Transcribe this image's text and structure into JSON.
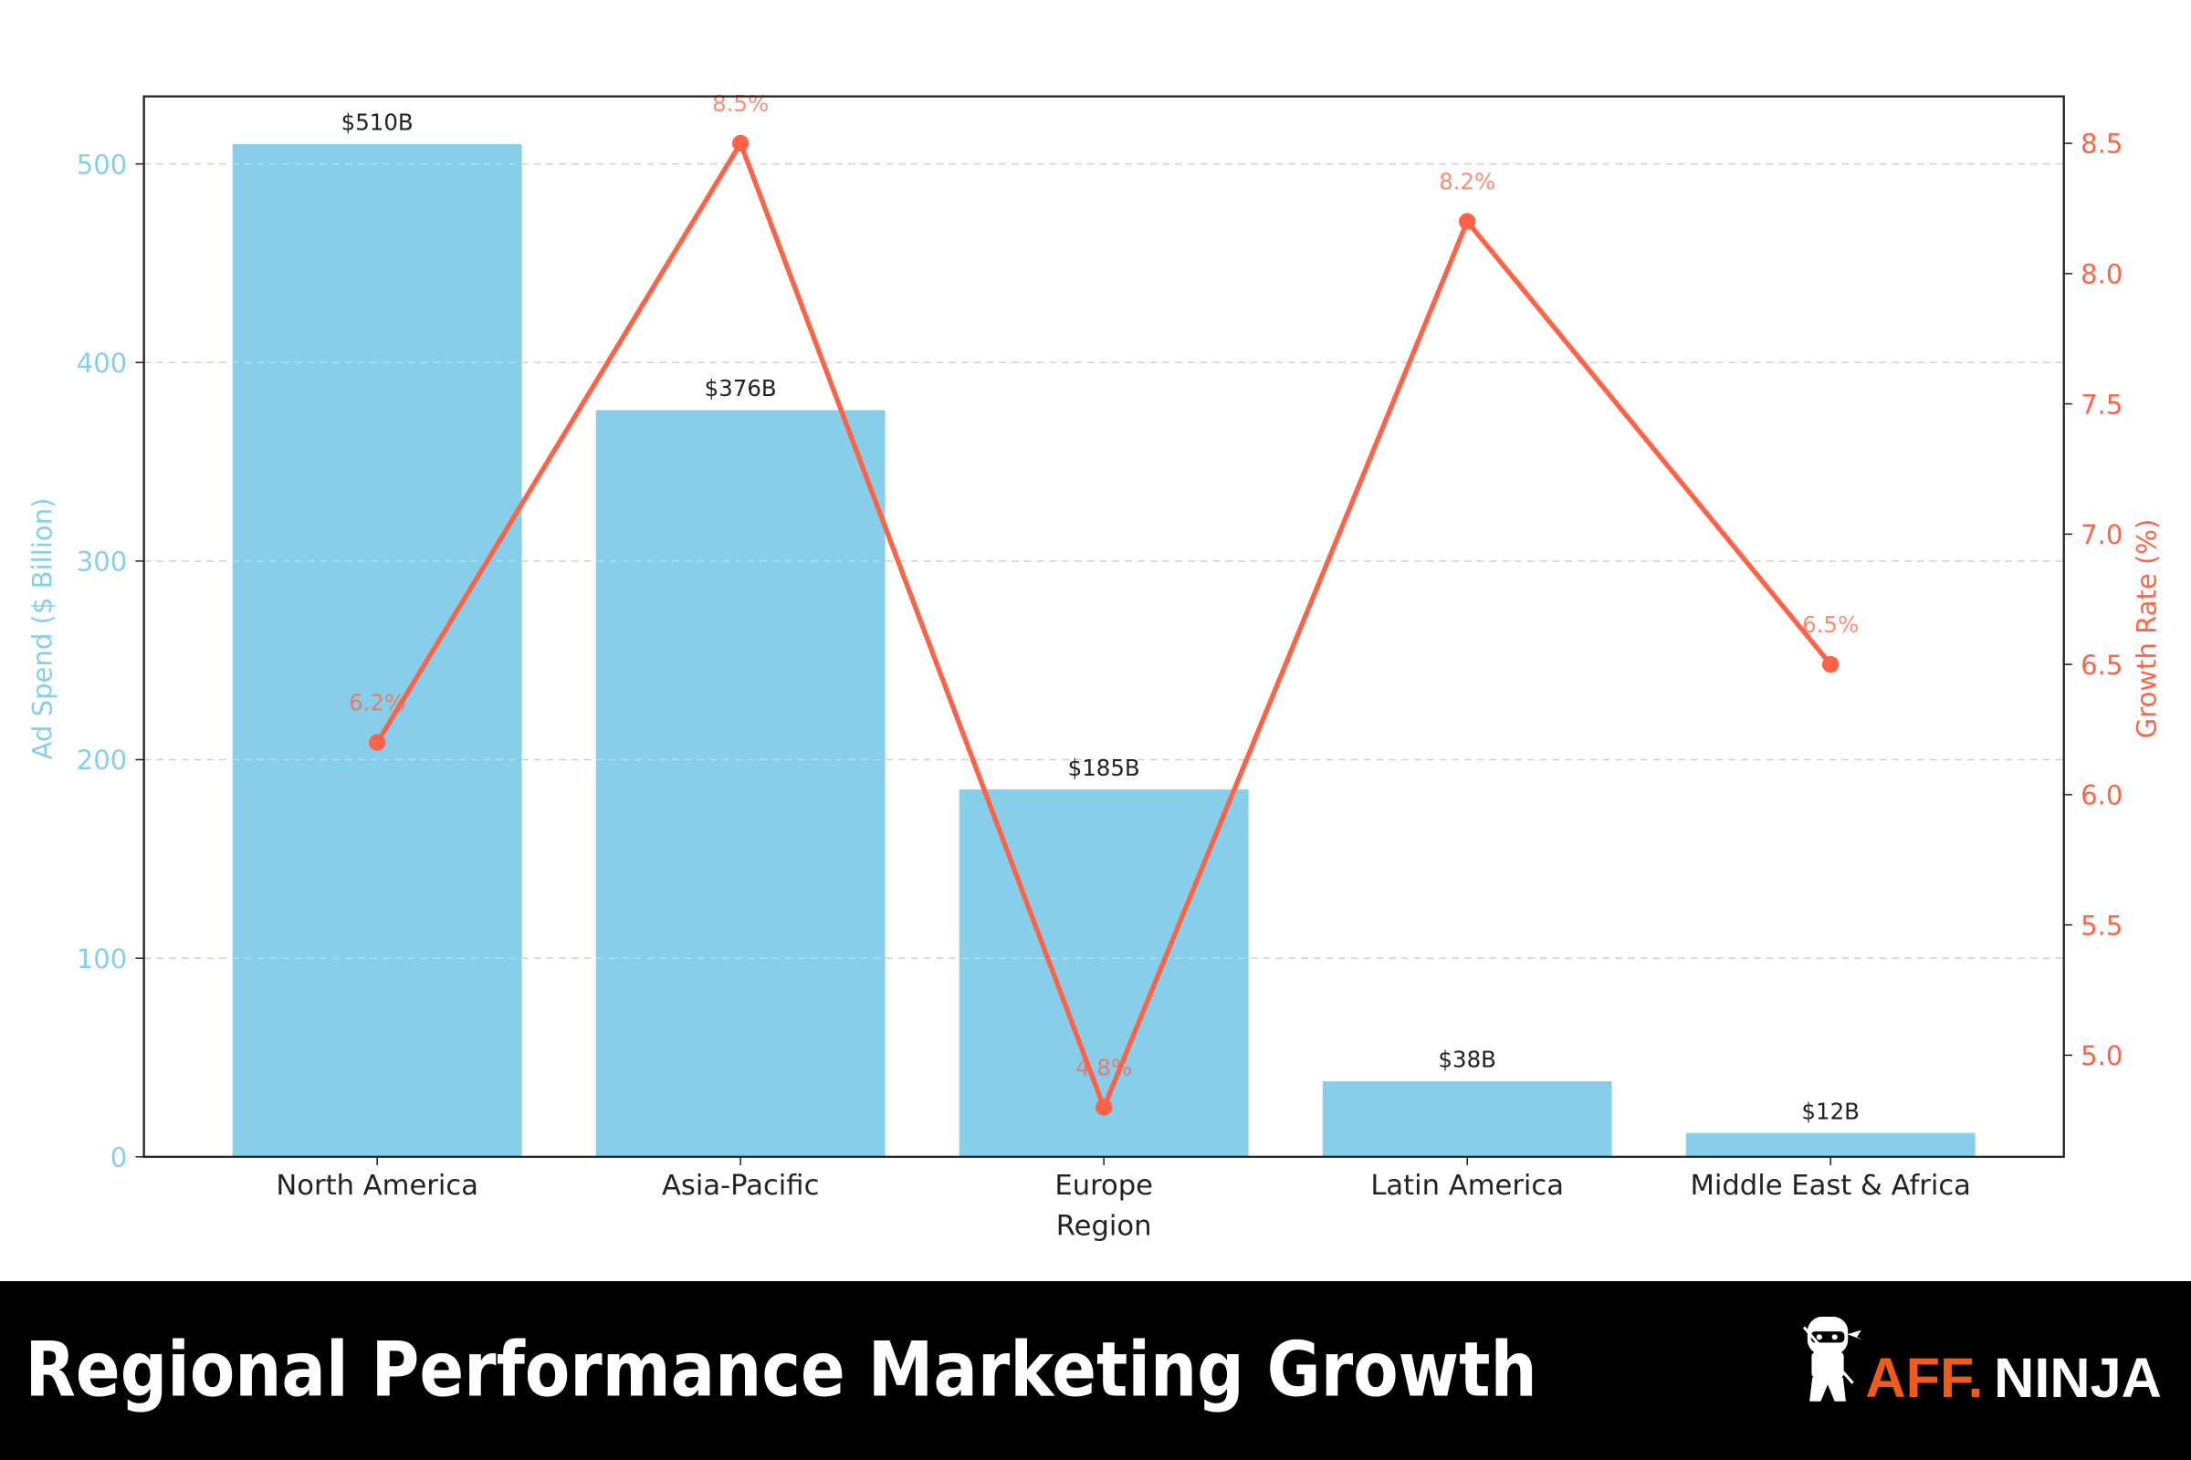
{
  "banner": {
    "title": "Regional Performance Marketing Growth",
    "logo_text_accent": "AFF.",
    "logo_text_main": "NINJA",
    "logo_icon": "ninja-mascot-icon"
  },
  "colors": {
    "bar": "#87CEEB",
    "line": "#FF6347",
    "left_axis": "#87CEEB",
    "right_axis": "#FF6347",
    "banner_bg": "#000000",
    "logo_accent": "#F05A1A"
  },
  "chart_data": {
    "type": "bar+line",
    "categories": [
      "North America",
      "Asia-Pacific",
      "Europe",
      "Latin America",
      "Middle East & Africa"
    ],
    "xlabel": "Region",
    "ylabel": "Ad Spend ($ Billion)",
    "y2label": "Growth Rate (%)",
    "ylim": [
      0,
      534
    ],
    "y2lim": [
      4.61,
      8.68
    ],
    "yticks": [
      "0",
      "100",
      "200",
      "300",
      "400",
      "500"
    ],
    "y2ticks": [
      "5.0",
      "5.5",
      "6.0",
      "6.5",
      "7.0",
      "7.5",
      "8.0",
      "8.5"
    ],
    "grid": true,
    "series": [
      {
        "kind": "bar",
        "axis": "left",
        "values": [
          510,
          376,
          185,
          38,
          12
        ],
        "labels": [
          "$510B",
          "$376B",
          "$185B",
          "$38B",
          "$12B"
        ]
      },
      {
        "kind": "line",
        "axis": "right",
        "values": [
          6.2,
          8.5,
          4.8,
          8.2,
          6.5
        ],
        "labels": [
          "6.2%",
          "8.5%",
          "4.8%",
          "8.2%",
          "6.5%"
        ]
      }
    ]
  }
}
